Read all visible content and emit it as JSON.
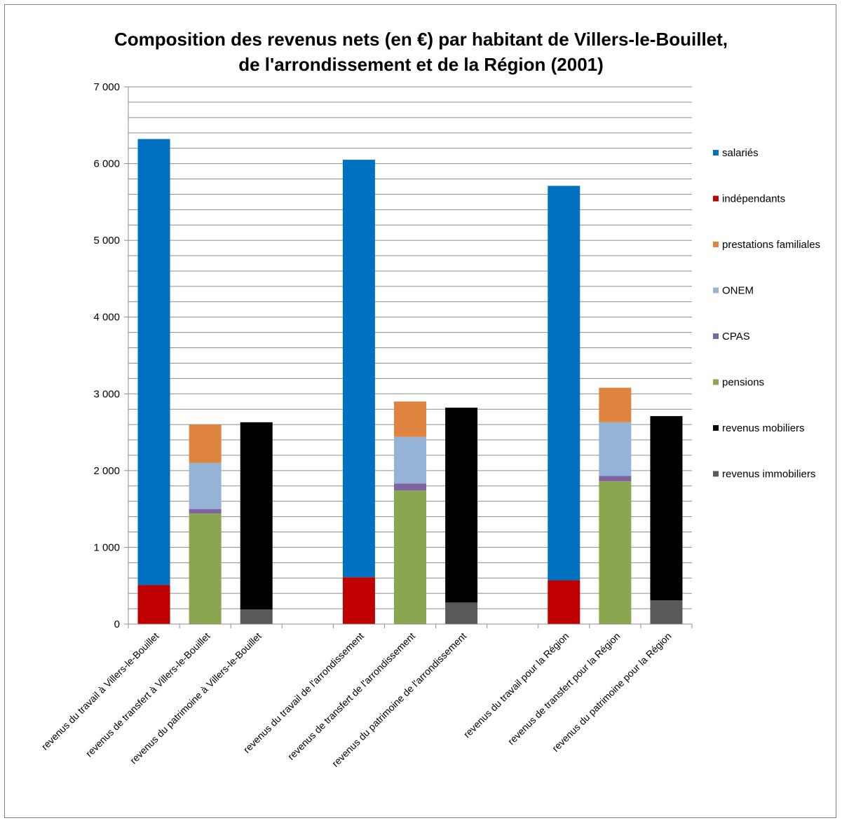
{
  "chart_data": {
    "type": "bar",
    "stacked": true,
    "title": [
      "Composition  des revenus nets (en €) par habitant de Villers-le-Bouillet,",
      "de l'arrondissement  et de la Région (2001)"
    ],
    "xlabel": "",
    "ylabel": "",
    "ylim": [
      0,
      7000
    ],
    "yticks": [
      0,
      1000,
      2000,
      3000,
      4000,
      5000,
      6000,
      7000
    ],
    "ytick_labels": [
      "0",
      "1 000",
      "2 000",
      "3 000",
      "4 000",
      "5 000",
      "6 000",
      "7 000"
    ],
    "grid": true,
    "legend_position": "right",
    "groups": [
      {
        "categories": [
          "revenus du travail à Villers-le-Bouillet",
          "revenus de transfert à Villers-le-Bouillet",
          "revenus du patrimoine à Villers-le-Bouillet"
        ]
      },
      {
        "categories": [
          "revenus du travail de l'arrondissement",
          "revenus de transfert de l'arrondissement",
          "revenus du patrimoine de l'arrondissement"
        ]
      },
      {
        "categories": [
          "revenus du travail pour la Région",
          "revenus de transfert pour la Région",
          "revenus du patrimoine pour la Région"
        ]
      }
    ],
    "categories": [
      "revenus du travail à Villers-le-Bouillet",
      "revenus de transfert à Villers-le-Bouillet",
      "revenus du patrimoine à Villers-le-Bouillet",
      "revenus du travail de l'arrondissement",
      "revenus de transfert de l'arrondissement",
      "revenus du patrimoine de l'arrondissement",
      "revenus du travail pour la Région",
      "revenus de transfert pour la Région",
      "revenus du patrimoine pour la Région"
    ],
    "series": [
      {
        "name": "salariés",
        "color": "#0070C0",
        "values": [
          5810,
          0,
          0,
          5440,
          0,
          0,
          5140,
          0,
          0
        ]
      },
      {
        "name": "indépendants",
        "color": "#C00000",
        "values": [
          510,
          0,
          0,
          610,
          0,
          0,
          570,
          0,
          0
        ]
      },
      {
        "name": "prestations familiales",
        "color": "#DE843F",
        "values": [
          0,
          500,
          0,
          0,
          460,
          0,
          0,
          450,
          0
        ]
      },
      {
        "name": "ONEM",
        "color": "#95B3D7",
        "values": [
          0,
          600,
          0,
          0,
          610,
          0,
          0,
          700,
          0
        ]
      },
      {
        "name": "CPAS",
        "color": "#8064A2",
        "values": [
          0,
          60,
          0,
          0,
          90,
          0,
          0,
          70,
          0
        ]
      },
      {
        "name": "pensions",
        "color": "#8AA64E",
        "values": [
          0,
          1440,
          0,
          0,
          1740,
          0,
          0,
          1860,
          0
        ]
      },
      {
        "name": "revenus mobiliers",
        "color": "#000000",
        "values": [
          0,
          0,
          2440,
          0,
          0,
          2540,
          0,
          0,
          2400
        ]
      },
      {
        "name": "revenus immobiliers",
        "color": "#595959",
        "values": [
          0,
          0,
          190,
          0,
          0,
          280,
          0,
          0,
          310
        ]
      }
    ],
    "stack_order": [
      "revenus immobiliers",
      "revenus mobiliers",
      "pensions",
      "CPAS",
      "ONEM",
      "prestations familiales",
      "indépendants",
      "salariés"
    ]
  }
}
